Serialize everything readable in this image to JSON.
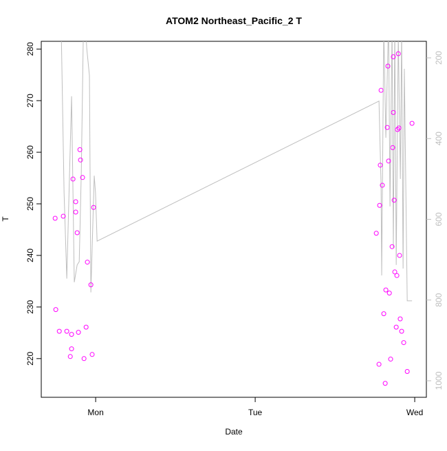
{
  "chart_data": {
    "type": "scatter",
    "title": "ATOM2 Northeast_Pacific_2 T",
    "x_label": "Date",
    "y_label": "T",
    "xlim": [
      0.659,
      3.073
    ],
    "xticks": [
      {
        "value": 1,
        "label": "Mon"
      },
      {
        "value": 2,
        "label": "Tue"
      },
      {
        "value": 3,
        "label": "Wed"
      }
    ],
    "ylim": [
      212.5,
      281.5
    ],
    "yticks": [
      220,
      230,
      240,
      250,
      260,
      270,
      280
    ],
    "y2lim": [
      1041,
      159
    ],
    "y2ticks": [
      200,
      400,
      600,
      800,
      1000
    ],
    "series": [
      {
        "type": "scatter",
        "color": "#ff00ff",
        "x": [
          0.746,
          0.75,
          0.772,
          0.797,
          0.819,
          0.841,
          0.849,
          0.849,
          0.858,
          0.875,
          0.875,
          0.884,
          0.892,
          0.901,
          0.905,
          0.918,
          0.927,
          0.94,
          0.948,
          0.97,
          0.978,
          0.987,
          2.759,
          2.776,
          2.78,
          2.784,
          2.789,
          2.797,
          2.806,
          2.815,
          2.819,
          2.828,
          2.832,
          2.836,
          2.841,
          2.849,
          2.858,
          2.862,
          2.866,
          2.866,
          2.871,
          2.875,
          2.884,
          2.888,
          2.892,
          2.897,
          2.901,
          2.905,
          2.909,
          2.918,
          2.931,
          2.953,
          2.983
        ],
        "values": [
          247.2,
          229.5,
          225.3,
          247.6,
          225.3,
          220.4,
          224.7,
          221.9,
          254.8,
          250.4,
          248.4,
          244.4,
          225.1,
          260.5,
          258.5,
          255.1,
          220.0,
          226.1,
          238.7,
          234.3,
          220.8,
          249.3,
          244.3,
          218.9,
          249.7,
          257.5,
          272.0,
          253.6,
          228.7,
          215.2,
          233.3,
          264.8,
          276.7,
          258.3,
          232.7,
          219.9,
          241.7,
          260.9,
          267.7,
          278.5,
          250.7,
          236.8,
          226.1,
          236.1,
          264.4,
          279.1,
          264.7,
          240.0,
          227.7,
          225.3,
          223.1,
          217.5,
          265.6
        ]
      },
      {
        "type": "line",
        "axis": "y2",
        "color": "#bebebe",
        "x": [
          0.784,
          0.802,
          0.819,
          0.849,
          0.866,
          0.884,
          0.897,
          0.91,
          0.922,
          0.935,
          0.944,
          0.961,
          0.97,
          0.991,
          0.999,
          1.009,
          2.776,
          2.789,
          2.793,
          2.806,
          2.815,
          2.819,
          2.836,
          2.845,
          2.858,
          2.866,
          2.875,
          2.884,
          2.897,
          2.91,
          2.918,
          2.927,
          2.935,
          2.953,
          2.983
        ],
        "values": [
          125,
          534,
          747,
          295,
          756,
          713,
          705,
          483,
          159,
          108,
          176,
          244,
          781,
          492,
          534,
          654,
          307,
          514,
          739,
          125,
          312,
          398,
          108,
          568,
          125,
          671,
          125,
          713,
          142,
          500,
          125,
          722,
          227,
          802,
          802
        ]
      }
    ]
  }
}
